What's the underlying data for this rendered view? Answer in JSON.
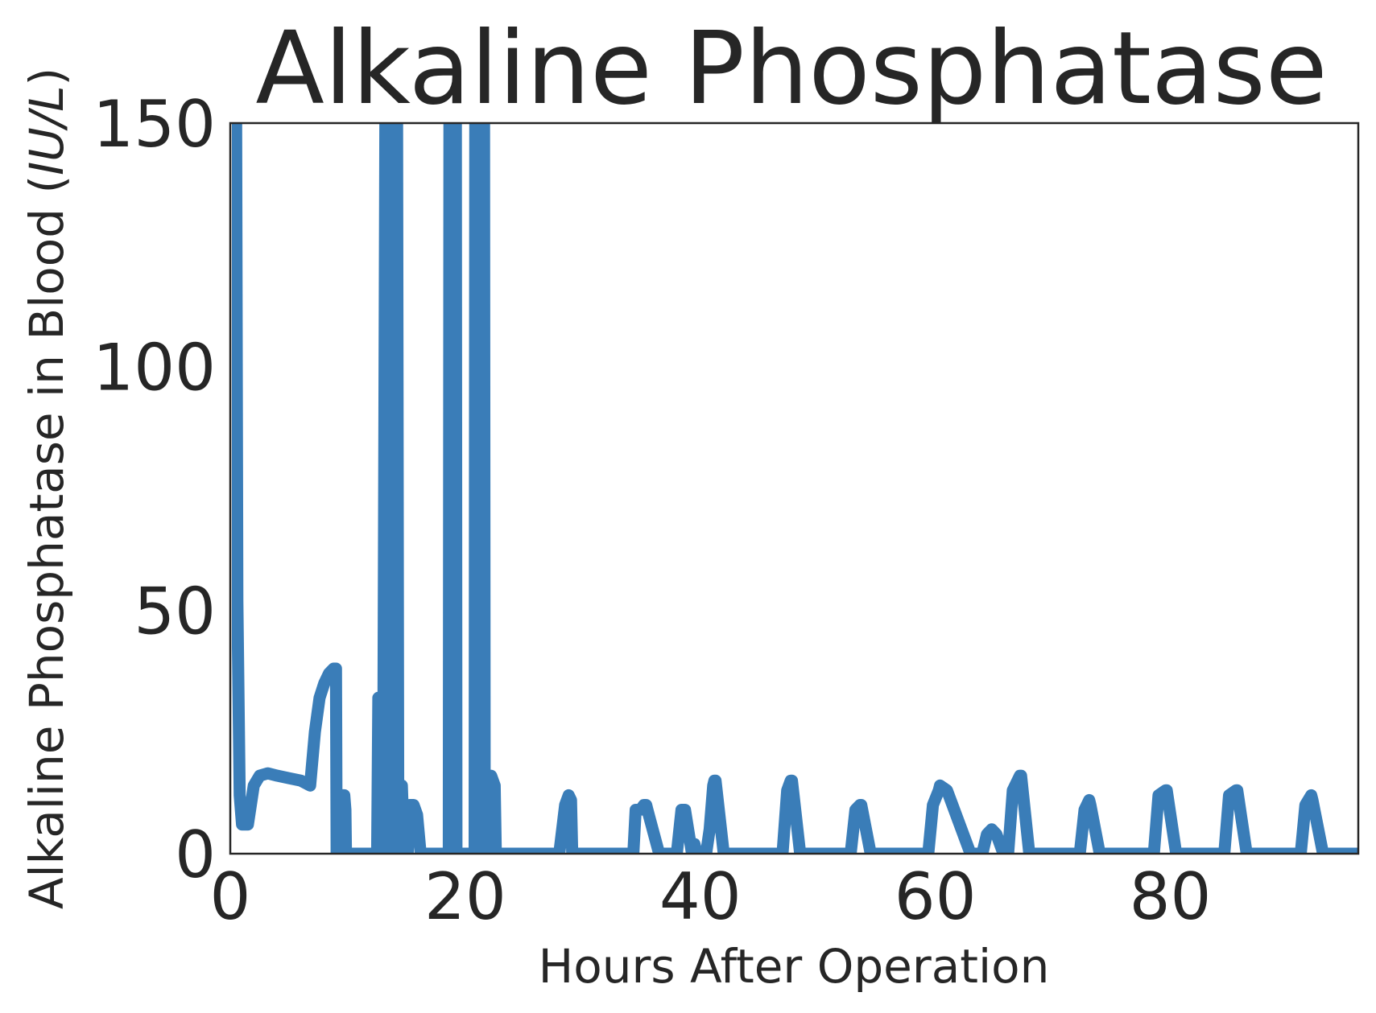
{
  "chart_data": {
    "type": "line",
    "title": "Alkaline Phosphatase",
    "xlabel": "Hours After Operation",
    "ylabel": "Alkaline Phosphatase in Blood (IU/L)",
    "xlim": [
      0,
      96
    ],
    "ylim": [
      0,
      150
    ],
    "xticks": [
      0,
      20,
      40,
      60,
      80
    ],
    "yticks": [
      0,
      50,
      100,
      150
    ],
    "grid": false,
    "series": [
      {
        "color": "#3a7db8",
        "x": [
          0.3,
          0.5,
          0.6,
          0.8,
          1.0,
          1.5,
          2.0,
          2.5,
          3.2,
          4.0,
          5.0,
          6.0,
          6.4,
          6.8,
          7.2,
          7.6,
          8.0,
          8.4,
          8.8,
          9.0,
          9.05,
          9.1,
          9.2,
          9.7,
          9.8,
          9.85,
          10.0,
          10.8,
          11.6,
          12.5,
          12.6,
          12.7,
          12.9,
          13.0,
          13.2,
          13.3,
          13.4,
          13.8,
          13.9,
          14.0,
          14.1,
          14.2,
          14.3,
          14.4,
          14.5,
          14.6,
          14.8,
          15.1,
          15.2,
          15.3,
          15.6,
          15.9,
          16.2,
          16.3,
          16.4,
          17.0,
          18.0,
          18.6,
          18.65,
          18.7,
          19.2,
          19.25,
          19.3,
          19.8,
          20.5,
          20.8,
          20.85,
          20.9,
          21.6,
          21.65,
          21.7,
          22.0,
          22.2,
          22.5,
          22.6,
          22.7,
          24.0,
          25.0,
          26.0,
          27.8,
          28.0,
          28.5,
          28.8,
          29.0,
          29.1,
          30.0,
          32.0,
          34.2,
          34.3,
          34.5,
          34.9,
          35.2,
          35.4,
          35.5,
          36.5,
          37.8,
          37.9,
          38.0,
          38.4,
          38.6,
          38.7,
          39.3,
          39.4,
          39.5,
          39.7,
          40.0,
          40.3,
          40.5,
          40.8,
          41.1,
          41.2,
          41.3,
          42.0,
          44.0,
          46.5,
          46.8,
          47.0,
          47.4,
          47.7,
          47.8,
          48.5,
          50.0,
          52.5,
          52.6,
          52.8,
          53.2,
          53.6,
          53.7,
          54.5,
          57.0,
          59.0,
          59.2,
          59.4,
          59.8,
          60.3,
          60.4,
          61.0,
          63.0,
          63.4,
          63.6,
          64.0,
          64.4,
          64.8,
          65.2,
          65.8,
          66.0,
          66.2,
          66.6,
          67.2,
          67.3,
          68.0,
          70.0,
          72.0,
          72.1,
          72.3,
          72.7,
          73.1,
          73.2,
          74.0,
          76.0,
          78.0,
          78.4,
          78.6,
          79.0,
          79.6,
          79.7,
          80.5,
          83.0,
          84.0,
          84.4,
          84.6,
          85.0,
          85.6,
          85.7,
          86.5,
          89.0,
          90.8,
          90.9,
          91.1,
          91.5,
          92.0,
          92.1,
          93.0,
          96.0
        ],
        "y": [
          150,
          150,
          52,
          12,
          6,
          6,
          14,
          16,
          16.5,
          16,
          15.5,
          15,
          14.5,
          14,
          25,
          32,
          35,
          37,
          38,
          38,
          0,
          0,
          12,
          12,
          9,
          0,
          0,
          0,
          0,
          0,
          32,
          32,
          0,
          0,
          150,
          150,
          0,
          0,
          14,
          14,
          150,
          150,
          0,
          0,
          14,
          14,
          0,
          0,
          8,
          10,
          10,
          8,
          0,
          0,
          0,
          0,
          0,
          0,
          150,
          150,
          150,
          0,
          0,
          0,
          0,
          0,
          150,
          150,
          150,
          0,
          0,
          16,
          16,
          14,
          0,
          0,
          0,
          0,
          0,
          0,
          0,
          10,
          12,
          11,
          0,
          0,
          0,
          0,
          0,
          9,
          9,
          10,
          10,
          9,
          0,
          0,
          0,
          0,
          9,
          9,
          9,
          0,
          0,
          2,
          0,
          0,
          0,
          0,
          5,
          14,
          15,
          15,
          0,
          0,
          0,
          0,
          0,
          13,
          15,
          15,
          0,
          0,
          0,
          0,
          0,
          9,
          10,
          10,
          0,
          0,
          0,
          0,
          0,
          10,
          13,
          14,
          13,
          0,
          0,
          0,
          0,
          4,
          5,
          4,
          0,
          0,
          0,
          13,
          16,
          16,
          0,
          0,
          0,
          0,
          0,
          9,
          11,
          10,
          0,
          0,
          0,
          0,
          0,
          12,
          13,
          13,
          0,
          0,
          0,
          0,
          0,
          12,
          13,
          13,
          0,
          0,
          0,
          0,
          0,
          10,
          12,
          11,
          0,
          0
        ]
      }
    ]
  }
}
